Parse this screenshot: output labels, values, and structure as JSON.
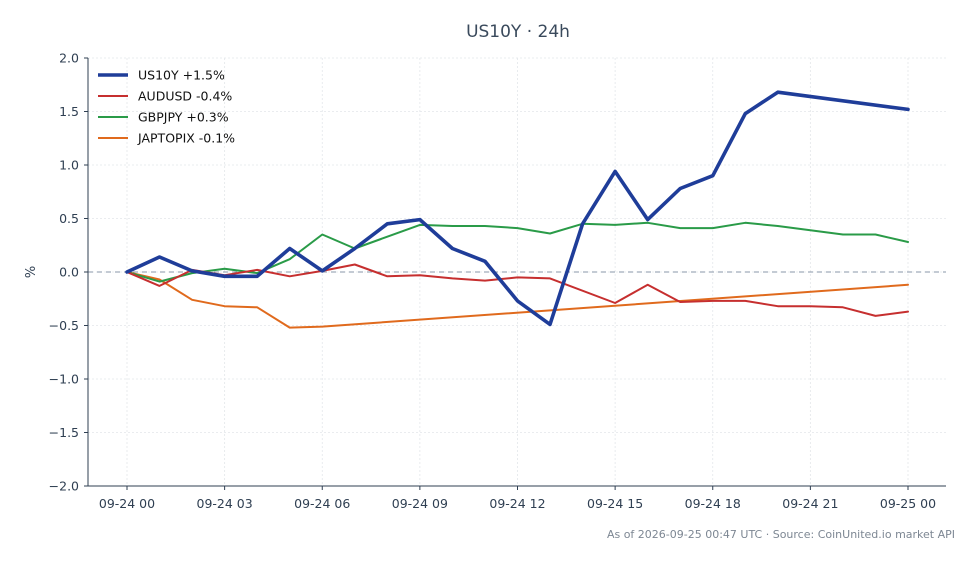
{
  "chart_data": {
    "type": "line",
    "title": "US10Y · 24h",
    "xlabel": "",
    "ylabel": "%",
    "ylim": [
      -2.0,
      2.0
    ],
    "yticks": [
      "2.0",
      "1.5",
      "1.0",
      "0.5",
      "0.0",
      "−0.5",
      "−1.0",
      "−1.5",
      "−2.0"
    ],
    "ytick_values": [
      2.0,
      1.5,
      1.0,
      0.5,
      0.0,
      -0.5,
      -1.0,
      -1.5,
      -2.0
    ],
    "xlim": [
      0,
      24
    ],
    "xticks": [
      "09-24 00",
      "09-24 03",
      "09-24 06",
      "09-24 09",
      "09-24 12",
      "09-24 15",
      "09-24 18",
      "09-24 21",
      "09-25 00"
    ],
    "xtick_values": [
      0,
      3,
      6,
      9,
      12,
      15,
      18,
      21,
      24
    ],
    "grid": true,
    "legend": "top-left",
    "zero_line": true,
    "series": [
      {
        "name": "US10Y +1.5%",
        "color": "#1f3d99",
        "x": [
          0,
          1,
          2,
          3,
          4,
          5,
          6,
          7,
          8,
          9,
          10,
          11,
          12,
          13,
          14,
          15,
          16,
          17,
          18,
          19,
          20,
          24
        ],
        "values": [
          0.0,
          0.14,
          0.01,
          -0.04,
          -0.04,
          0.22,
          0.01,
          0.22,
          0.45,
          0.49,
          0.22,
          0.1,
          -0.27,
          -0.49,
          0.45,
          0.94,
          0.49,
          0.78,
          0.9,
          1.48,
          1.68,
          1.52
        ]
      },
      {
        "name": "AUDUSD -0.4%",
        "color": "#c62f2f",
        "x": [
          0,
          1,
          2,
          3,
          4,
          5,
          6,
          7,
          8,
          9,
          10,
          11,
          12,
          13,
          15,
          16,
          17,
          18,
          19,
          20,
          21,
          22,
          23,
          24
        ],
        "values": [
          0.0,
          -0.13,
          0.02,
          -0.03,
          0.02,
          -0.04,
          0.01,
          0.07,
          -0.04,
          -0.03,
          -0.06,
          -0.08,
          -0.05,
          -0.06,
          -0.29,
          -0.12,
          -0.28,
          -0.27,
          -0.27,
          -0.32,
          -0.32,
          -0.33,
          -0.41,
          -0.37
        ]
      },
      {
        "name": "GBPJPY +0.3%",
        "color": "#2a9b48",
        "x": [
          0,
          1,
          2,
          3,
          4,
          5,
          6,
          7,
          8,
          9,
          10,
          11,
          12,
          13,
          14,
          15,
          16,
          17,
          18,
          19,
          20,
          21,
          22,
          23,
          24
        ],
        "values": [
          0.0,
          -0.09,
          -0.01,
          0.03,
          -0.01,
          0.12,
          0.35,
          0.22,
          0.33,
          0.44,
          0.43,
          0.43,
          0.41,
          0.36,
          0.45,
          0.44,
          0.46,
          0.41,
          0.41,
          0.46,
          0.43,
          0.39,
          0.35,
          0.35,
          0.28
        ]
      },
      {
        "name": "JAPTOPIX -0.1%",
        "color": "#e06a1d",
        "x": [
          0,
          1,
          2,
          3,
          4,
          5,
          6,
          24
        ],
        "values": [
          0.0,
          -0.07,
          -0.26,
          -0.32,
          -0.33,
          -0.52,
          -0.51,
          -0.12
        ]
      }
    ]
  },
  "footer": "As of 2026-09-25 00:47 UTC · Source: CoinUnited.io market API"
}
